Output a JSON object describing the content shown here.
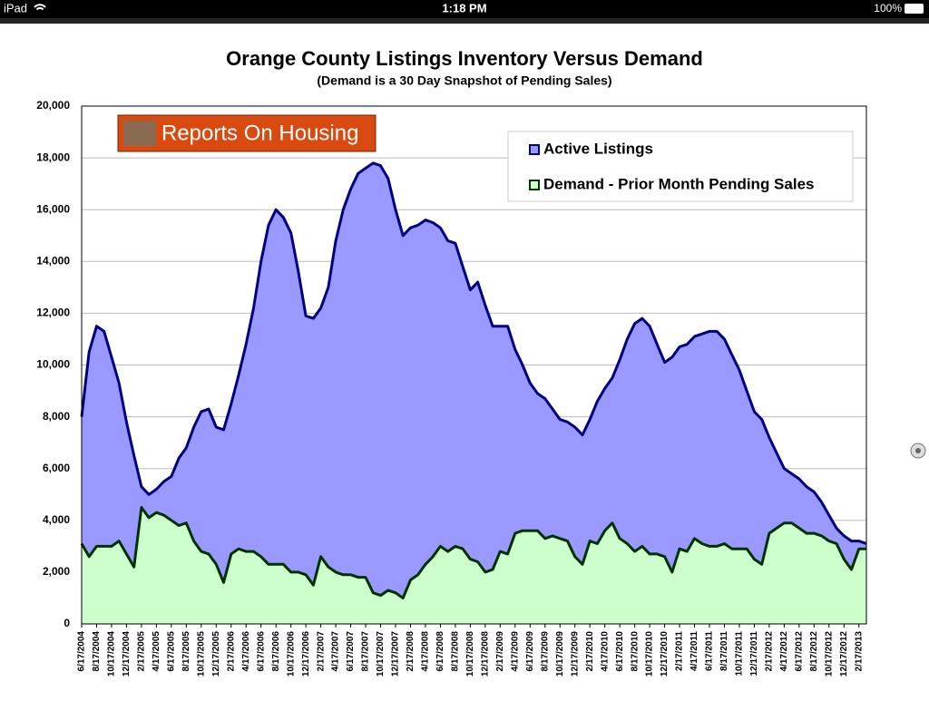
{
  "status_bar": {
    "device": "iPad",
    "time": "1:18 PM",
    "battery": "100%"
  },
  "chart_data": {
    "type": "area",
    "title": "Orange County Listings Inventory Versus Demand",
    "subtitle": "(Demand is a 30 Day Snapshot of Pending Sales)",
    "logo": "Reports On Housing",
    "categories": [
      "6/17/2004",
      null,
      "8/17/2004",
      null,
      "10/17/2004",
      null,
      "12/17/2004",
      null,
      "2/17/2005",
      null,
      "4/17/2005",
      null,
      "6/17/2005",
      null,
      "8/17/2005",
      null,
      "10/17/2005",
      null,
      "12/17/2005",
      null,
      "2/17/2006",
      null,
      "4/17/2006",
      null,
      "6/17/2006",
      null,
      "8/17/2006",
      null,
      "10/17/2006",
      null,
      "12/17/2006",
      null,
      "2/17/2007",
      null,
      "4/17/2007",
      null,
      "6/17/2007",
      null,
      "8/17/2007",
      null,
      "10/17/2007",
      null,
      "12/17/2007",
      null,
      "2/17/2008",
      null,
      "4/17/2008",
      null,
      "6/17/2008",
      null,
      "8/17/2008",
      null,
      "10/17/2008",
      null,
      "12/17/2008",
      null,
      "2/17/2009",
      null,
      "4/17/2009",
      null,
      "6/17/2009",
      null,
      "8/17/2009",
      null,
      "10/17/2009",
      null,
      "12/17/2009",
      null,
      "2/17/2010",
      null,
      "4/17/2010",
      null,
      "6/17/2010",
      null,
      "8/17/2010",
      null,
      "10/17/2010",
      null,
      "12/17/2010",
      null,
      "2/17/2011",
      null,
      "4/17/2011",
      null,
      "6/17/2011",
      null,
      "8/17/2011",
      null,
      "10/17/2011",
      null,
      "12/17/2011",
      null,
      "2/17/2012",
      null,
      "4/17/2012",
      null,
      "6/17/2012",
      null,
      "8/17/2012",
      null,
      "10/17/2012",
      null,
      "12/17/2012",
      null,
      "2/17/2013",
      null
    ],
    "series": [
      {
        "name": "Active Listings",
        "color": "#9999ff",
        "line_color": "#000080",
        "values": [
          8000,
          10500,
          11500,
          11300,
          10300,
          9300,
          7800,
          6500,
          5300,
          5000,
          5200,
          5500,
          5700,
          6400,
          6800,
          7600,
          8200,
          8300,
          7600,
          7500,
          8500,
          9600,
          10800,
          12200,
          14000,
          15400,
          16000,
          15700,
          15100,
          13600,
          11900,
          11800,
          12200,
          13000,
          14800,
          16000,
          16800,
          17400,
          17600,
          17800,
          17700,
          17200,
          16000,
          15000,
          15300,
          15400,
          15600,
          15500,
          15300,
          14800,
          14700,
          13800,
          12900,
          13200,
          12300,
          11500,
          11500,
          11500,
          10600,
          10000,
          9300,
          8900,
          8700,
          8300,
          7900,
          7800,
          7600,
          7300,
          7900,
          8600,
          9100,
          9500,
          10200,
          11000,
          11600,
          11800,
          11500,
          10800,
          10100,
          10300,
          10700,
          10800,
          11100,
          11200,
          11300,
          11300,
          11000,
          10400,
          9800,
          9000,
          8200,
          7900,
          7200,
          6600,
          6000,
          5800,
          5600,
          5300,
          5100,
          4700,
          4200,
          3700,
          3400,
          3200,
          3200,
          3100
        ]
      },
      {
        "name": "Demand - Prior Month Pending Sales",
        "color": "#ccffcc",
        "line_color": "#003300",
        "values": [
          3100,
          2600,
          3000,
          3000,
          3000,
          3200,
          2700,
          2200,
          4500,
          4100,
          4300,
          4200,
          4000,
          3800,
          3900,
          3200,
          2800,
          2700,
          2300,
          1600,
          2700,
          2900,
          2800,
          2800,
          2600,
          2300,
          2300,
          2300,
          2000,
          2000,
          1900,
          1500,
          2600,
          2200,
          2000,
          1900,
          1900,
          1800,
          1800,
          1200,
          1100,
          1300,
          1200,
          1000,
          1700,
          1900,
          2300,
          2600,
          3000,
          2800,
          3000,
          2900,
          2500,
          2400,
          2000,
          2100,
          2800,
          2700,
          3500,
          3600,
          3600,
          3600,
          3300,
          3400,
          3300,
          3200,
          2600,
          2300,
          3200,
          3100,
          3600,
          3900,
          3300,
          3100,
          2800,
          3000,
          2700,
          2700,
          2600,
          2000,
          2900,
          2800,
          3300,
          3100,
          3000,
          3000,
          3100,
          2900,
          2900,
          2900,
          2500,
          2300,
          3500,
          3700,
          3900,
          3900,
          3700,
          3500,
          3500,
          3400,
          3200,
          3100,
          2500,
          2100,
          2900,
          2900
        ]
      }
    ],
    "ylim": [
      0,
      20000
    ],
    "yticks": [
      0,
      {
        "value": 2000,
        "label": "2,000"
      },
      {
        "value": 4000,
        "label": "4,000"
      },
      {
        "value": 6000,
        "label": "6,000"
      },
      {
        "value": 8000,
        "label": "8,000"
      },
      {
        "value": 10000,
        "label": "10,000"
      },
      {
        "value": 12000,
        "label": "12,000"
      },
      {
        "value": 14000,
        "label": "14,000"
      },
      {
        "value": 16000,
        "label": "16,000"
      },
      {
        "value": 18000,
        "label": "18,000"
      },
      {
        "value": 20000,
        "label": "20,000"
      }
    ],
    "grid": true,
    "legend": "top-right"
  }
}
